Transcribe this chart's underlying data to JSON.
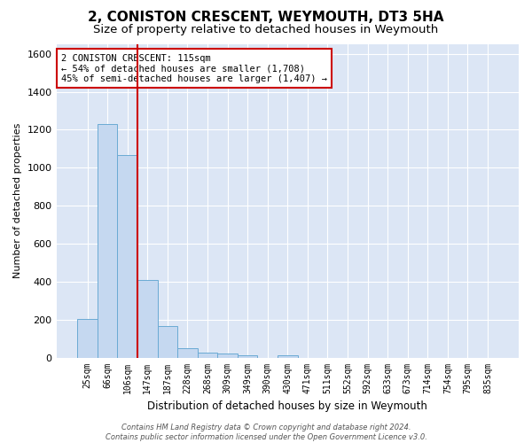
{
  "title": "2, CONISTON CRESCENT, WEYMOUTH, DT3 5HA",
  "subtitle": "Size of property relative to detached houses in Weymouth",
  "xlabel": "Distribution of detached houses by size in Weymouth",
  "ylabel": "Number of detached properties",
  "categories": [
    "25sqm",
    "66sqm",
    "106sqm",
    "147sqm",
    "187sqm",
    "228sqm",
    "268sqm",
    "309sqm",
    "349sqm",
    "390sqm",
    "430sqm",
    "471sqm",
    "511sqm",
    "552sqm",
    "592sqm",
    "633sqm",
    "673sqm",
    "714sqm",
    "754sqm",
    "795sqm",
    "835sqm"
  ],
  "values": [
    205,
    1230,
    1065,
    410,
    165,
    48,
    25,
    20,
    12,
    0,
    12,
    0,
    0,
    0,
    0,
    0,
    0,
    0,
    0,
    0,
    0
  ],
  "bar_color": "#c5d8f0",
  "bar_edge_color": "#6aaad4",
  "red_line_index": 2,
  "annotation_text": "2 CONISTON CRESCENT: 115sqm\n← 54% of detached houses are smaller (1,708)\n45% of semi-detached houses are larger (1,407) →",
  "annotation_box_color": "#ffffff",
  "annotation_box_edge": "#cc0000",
  "ylim": [
    0,
    1650
  ],
  "yticks": [
    0,
    200,
    400,
    600,
    800,
    1000,
    1200,
    1400,
    1600
  ],
  "bg_color": "#dce6f5",
  "footer_text": "Contains HM Land Registry data © Crown copyright and database right 2024.\nContains public sector information licensed under the Open Government Licence v3.0.",
  "red_line_color": "#cc0000",
  "title_fontsize": 11,
  "subtitle_fontsize": 9.5
}
